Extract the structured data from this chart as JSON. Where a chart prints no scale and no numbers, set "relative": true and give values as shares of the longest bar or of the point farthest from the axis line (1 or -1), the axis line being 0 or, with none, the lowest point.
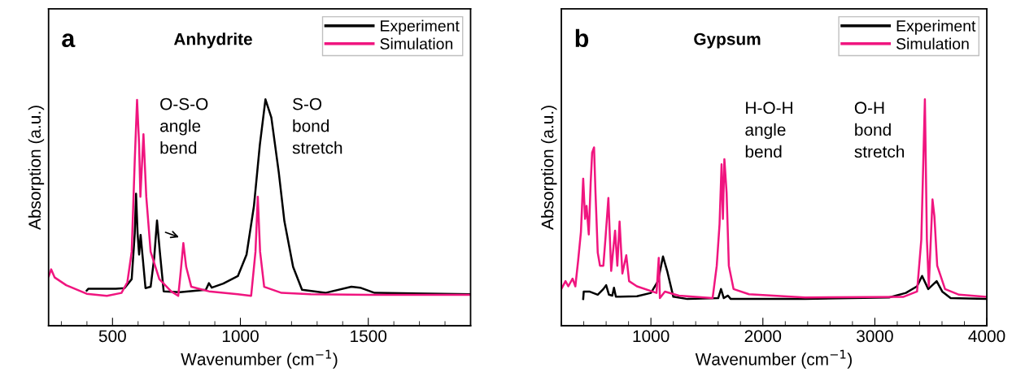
{
  "chart_data": [
    {
      "type": "line",
      "title": "Anhydrite",
      "xlabel": "Wavenumber (cm$^{−1}$)",
      "ylabel": "Absorption (a.u.)",
      "relative": true,
      "legend": "top right",
      "grid": false,
      "xlim": [
        250,
        1900
      ],
      "xticks": [
        500,
        1000,
        1500
      ],
      "annotations": [
        "a",
        "O-S-O\nangle\nbend",
        "S-O\nbond\nstretch"
      ],
      "series": [
        {
          "name": "Experiment",
          "color": "#000000",
          "x": [
            399,
            405,
            513,
            547,
            575,
            587,
            592,
            598,
            604,
            610,
            617,
            629,
            649,
            663,
            674,
            685,
            700,
            763,
            865,
            877,
            888,
            933,
            990,
            1024,
            1053,
            1076,
            1098,
            1121,
            1150,
            1172,
            1206,
            1241,
            1332,
            1434,
            1468,
            1525,
            1900
          ],
          "values": [
            0.155,
            0.163,
            0.163,
            0.166,
            0.206,
            0.408,
            0.583,
            0.408,
            0.314,
            0.401,
            0.314,
            0.166,
            0.172,
            0.3,
            0.465,
            0.327,
            0.152,
            0.148,
            0.159,
            0.188,
            0.168,
            0.186,
            0.219,
            0.314,
            0.529,
            0.799,
            1.0,
            0.92,
            0.678,
            0.462,
            0.26,
            0.159,
            0.145,
            0.172,
            0.168,
            0.145,
            0.139
          ]
        },
        {
          "name": "Simulation",
          "color": "#f0157f",
          "x": [
            251,
            260,
            274,
            319,
            399,
            478,
            535,
            558,
            575,
            587,
            596,
            604,
            609,
            621,
            632,
            649,
            683,
            729,
            757,
            765,
            777,
            788,
            808,
            877,
            990,
            1042,
            1059,
            1068,
            1077,
            1093,
            1161,
            1275,
            1502,
            1900
          ],
          "values": [
            0.219,
            0.249,
            0.213,
            0.179,
            0.141,
            0.132,
            0.145,
            0.192,
            0.327,
            0.732,
            0.998,
            0.799,
            0.57,
            0.846,
            0.57,
            0.327,
            0.206,
            0.152,
            0.132,
            0.219,
            0.365,
            0.26,
            0.172,
            0.152,
            0.139,
            0.132,
            0.327,
            0.57,
            0.327,
            0.172,
            0.145,
            0.139,
            0.136,
            0.136
          ]
        }
      ]
    },
    {
      "type": "line",
      "title": "Gypsum",
      "xlabel": "Wavenumber (cm$^{−1}$)",
      "ylabel": "Absorption (a.u.)",
      "relative": true,
      "legend": "top right",
      "grid": false,
      "xlim": [
        200,
        4000
      ],
      "xticks": [
        1000,
        2000,
        3000,
        4000
      ],
      "annotations": [
        "b",
        "H-O-H\nangle\nbend",
        "O-H\nbond\nstretch"
      ],
      "series": [
        {
          "name": "Experiment",
          "color": "#000000",
          "x": [
            395,
            400,
            450,
            525,
            575,
            600,
            625,
            655,
            670,
            687,
            875,
            1000,
            1063,
            1108,
            1145,
            1200,
            1325,
            1601,
            1626,
            1651,
            1688,
            1713,
            2376,
            3127,
            3277,
            3377,
            3422,
            3477,
            3552,
            3602,
            3677,
            4000
          ],
          "values": [
            0.118,
            0.151,
            0.151,
            0.137,
            0.162,
            0.179,
            0.137,
            0.133,
            0.168,
            0.128,
            0.13,
            0.145,
            0.197,
            0.306,
            0.242,
            0.128,
            0.118,
            0.122,
            0.162,
            0.122,
            0.133,
            0.118,
            0.118,
            0.125,
            0.145,
            0.174,
            0.22,
            0.162,
            0.197,
            0.151,
            0.122,
            0.118
          ]
        },
        {
          "name": "Simulation",
          "color": "#f0157f",
          "x": [
            200,
            237,
            262,
            300,
            325,
            350,
            375,
            395,
            412,
            425,
            445,
            462,
            475,
            492,
            505,
            525,
            545,
            575,
            595,
            620,
            645,
            680,
            700,
            720,
            745,
            780,
            805,
            875,
            1050,
            1070,
            1080,
            1125,
            1250,
            1551,
            1588,
            1613,
            1631,
            1643,
            1656,
            1676,
            1696,
            1738,
            1876,
            2376,
            3252,
            3377,
            3415,
            3447,
            3465,
            3482,
            3515,
            3532,
            3557,
            3627,
            3752,
            4000
          ],
          "values": [
            0.162,
            0.197,
            0.174,
            0.208,
            0.174,
            0.288,
            0.415,
            0.65,
            0.472,
            0.529,
            0.403,
            0.633,
            0.765,
            0.788,
            0.587,
            0.323,
            0.265,
            0.265,
            0.392,
            0.564,
            0.242,
            0.42,
            0.265,
            0.46,
            0.231,
            0.311,
            0.197,
            0.174,
            0.145,
            0.3,
            0.122,
            0.151,
            0.133,
            0.122,
            0.265,
            0.449,
            0.713,
            0.472,
            0.736,
            0.587,
            0.265,
            0.162,
            0.139,
            0.125,
            0.127,
            0.151,
            0.38,
            1.0,
            0.38,
            0.174,
            0.558,
            0.483,
            0.265,
            0.162,
            0.137,
            0.127
          ]
        }
      ]
    }
  ]
}
